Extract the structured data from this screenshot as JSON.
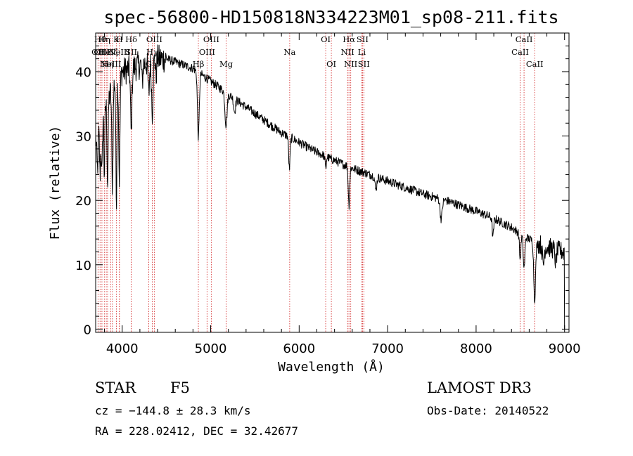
{
  "chart_data": {
    "type": "line",
    "title": "spec-56800-HD150818N334223M01_sp08-211.fits",
    "xlabel": "Wavelength (Å)",
    "ylabel": "Flux (relative)",
    "xlim": [
      3700,
      9050
    ],
    "ylim": [
      -0.5,
      46
    ],
    "xticks": [
      4000,
      5000,
      6000,
      7000,
      8000,
      9000
    ],
    "yticks": [
      0,
      10,
      20,
      30,
      40
    ],
    "x_tick_labels": [
      "4000",
      "5000",
      "6000",
      "7000",
      "8000",
      "9000"
    ],
    "y_tick_labels": [
      "0",
      "10",
      "20",
      "30",
      "40"
    ],
    "series": [
      {
        "name": "flux",
        "continuum": [
          [
            3700,
            30
          ],
          [
            3800,
            34
          ],
          [
            3900,
            38
          ],
          [
            4000,
            40
          ],
          [
            4100,
            40.5
          ],
          [
            4200,
            41
          ],
          [
            4300,
            41.5
          ],
          [
            4400,
            42
          ],
          [
            4500,
            42
          ],
          [
            4600,
            41.5
          ],
          [
            4700,
            41
          ],
          [
            4800,
            40.5
          ],
          [
            4900,
            39.5
          ],
          [
            5000,
            38.5
          ],
          [
            5100,
            37.5
          ],
          [
            5200,
            36.5
          ],
          [
            5300,
            35.5
          ],
          [
            5400,
            34.5
          ],
          [
            5500,
            33.5
          ],
          [
            5600,
            32.5
          ],
          [
            5700,
            31.5
          ],
          [
            5800,
            30.5
          ],
          [
            5900,
            29.8
          ],
          [
            6000,
            29
          ],
          [
            6100,
            28.2
          ],
          [
            6200,
            27.5
          ],
          [
            6300,
            26.8
          ],
          [
            6400,
            26.2
          ],
          [
            6500,
            25.6
          ],
          [
            6600,
            25
          ],
          [
            6700,
            24.5
          ],
          [
            6800,
            24
          ],
          [
            6900,
            23.5
          ],
          [
            7000,
            23
          ],
          [
            7100,
            22.5
          ],
          [
            7200,
            22
          ],
          [
            7300,
            21.5
          ],
          [
            7400,
            21
          ],
          [
            7500,
            20.6
          ],
          [
            7600,
            20.2
          ],
          [
            7700,
            19.8
          ],
          [
            7800,
            19.3
          ],
          [
            7900,
            18.8
          ],
          [
            8000,
            18.3
          ],
          [
            8100,
            17.8
          ],
          [
            8200,
            17.2
          ],
          [
            8300,
            16.5
          ],
          [
            8400,
            15.8
          ],
          [
            8500,
            14.8
          ],
          [
            8600,
            14
          ],
          [
            8700,
            13.3
          ],
          [
            8800,
            12.8
          ],
          [
            8900,
            12.3
          ],
          [
            9000,
            12
          ]
        ],
        "absorption_features": [
          [
            3720,
            6,
            8
          ],
          [
            3750,
            8,
            6
          ],
          [
            3770,
            9,
            6
          ],
          [
            3798,
            10,
            5
          ],
          [
            3835,
            13,
            6
          ],
          [
            3889,
            15,
            7
          ],
          [
            3934,
            19,
            6
          ],
          [
            3968,
            16,
            7
          ],
          [
            4102,
            10,
            8
          ],
          [
            4227,
            3,
            6
          ],
          [
            4300,
            5,
            8
          ],
          [
            4340,
            8,
            8
          ],
          [
            4383,
            3,
            5
          ],
          [
            4861,
            10,
            10
          ],
          [
            5173,
            5,
            12
          ],
          [
            5270,
            2,
            10
          ],
          [
            5890,
            5,
            8
          ],
          [
            6300,
            2,
            6
          ],
          [
            6563,
            6,
            8
          ],
          [
            6867,
            2,
            10
          ],
          [
            7605,
            3,
            12
          ],
          [
            8190,
            3,
            8
          ],
          [
            8498,
            4,
            8
          ],
          [
            8542,
            5,
            9
          ],
          [
            8662,
            9,
            10
          ],
          [
            8760,
            3,
            10
          ],
          [
            8900,
            2,
            8
          ]
        ],
        "noise_amplitude": 0.7
      }
    ],
    "annotations": [
      {
        "wavelength": 3727,
        "label": "OII",
        "row": 2
      },
      {
        "wavelength": 3750,
        "label": "Hθ",
        "row": 1
      },
      {
        "wavelength": 3771,
        "label": "OIII",
        "row": 2
      },
      {
        "wavelength": 3798,
        "label": "Hη",
        "row": 1
      },
      {
        "wavelength": 3820,
        "label": "HeI",
        "row": 2
      },
      {
        "wavelength": 3835,
        "label": "Hη",
        "row": 3
      },
      {
        "wavelength": 3869,
        "label": "NeIII",
        "row": 3
      },
      {
        "wavelength": 3889,
        "label": "Hζ",
        "row": 2
      },
      {
        "wavelength": 3934,
        "label": "K",
        "row": 1
      },
      {
        "wavelength": 3968,
        "label": "H",
        "row": 1
      },
      {
        "wavelength": 3968,
        "label": "NeIII",
        "row": 2
      },
      {
        "wavelength": 4102,
        "label": "Hδ",
        "row": 1
      },
      {
        "wavelength": 4102,
        "label": "SII",
        "row": 2
      },
      {
        "wavelength": 4300,
        "label": "G",
        "row": 3
      },
      {
        "wavelength": 4340,
        "label": "Hγ",
        "row": 2
      },
      {
        "wavelength": 4363,
        "label": "OIII",
        "row": 1
      },
      {
        "wavelength": 4861,
        "label": "Hβ",
        "row": 3
      },
      {
        "wavelength": 4959,
        "label": "OIII",
        "row": 2
      },
      {
        "wavelength": 5007,
        "label": "OIII",
        "row": 1
      },
      {
        "wavelength": 5175,
        "label": "Mg",
        "row": 3
      },
      {
        "wavelength": 5893,
        "label": "Na",
        "row": 2
      },
      {
        "wavelength": 6300,
        "label": "OI",
        "row": 1
      },
      {
        "wavelength": 6364,
        "label": "OI",
        "row": 3
      },
      {
        "wavelength": 6548,
        "label": "NII",
        "row": 2
      },
      {
        "wavelength": 6563,
        "label": "Hα",
        "row": 1
      },
      {
        "wavelength": 6583,
        "label": "NII",
        "row": 3
      },
      {
        "wavelength": 6708,
        "label": "Li",
        "row": 2
      },
      {
        "wavelength": 6716,
        "label": "SII",
        "row": 1
      },
      {
        "wavelength": 6731,
        "label": "SII",
        "row": 3
      },
      {
        "wavelength": 8498,
        "label": "CaII",
        "row": 2
      },
      {
        "wavelength": 8542,
        "label": "CaII",
        "row": 1
      },
      {
        "wavelength": 8662,
        "label": "CaII",
        "row": 3
      }
    ],
    "colors": {
      "spectrum": "#000000",
      "marker": "#d73a3a",
      "axes": "#000000"
    }
  },
  "info": {
    "class": "STAR",
    "subclass": "F5",
    "survey": "LAMOST DR3",
    "cz": "cz = −144.8 ± 28.3 km/s",
    "obs_date": "Obs-Date: 20140522",
    "radec": "RA = 228.02412, DEC =  32.42677"
  }
}
